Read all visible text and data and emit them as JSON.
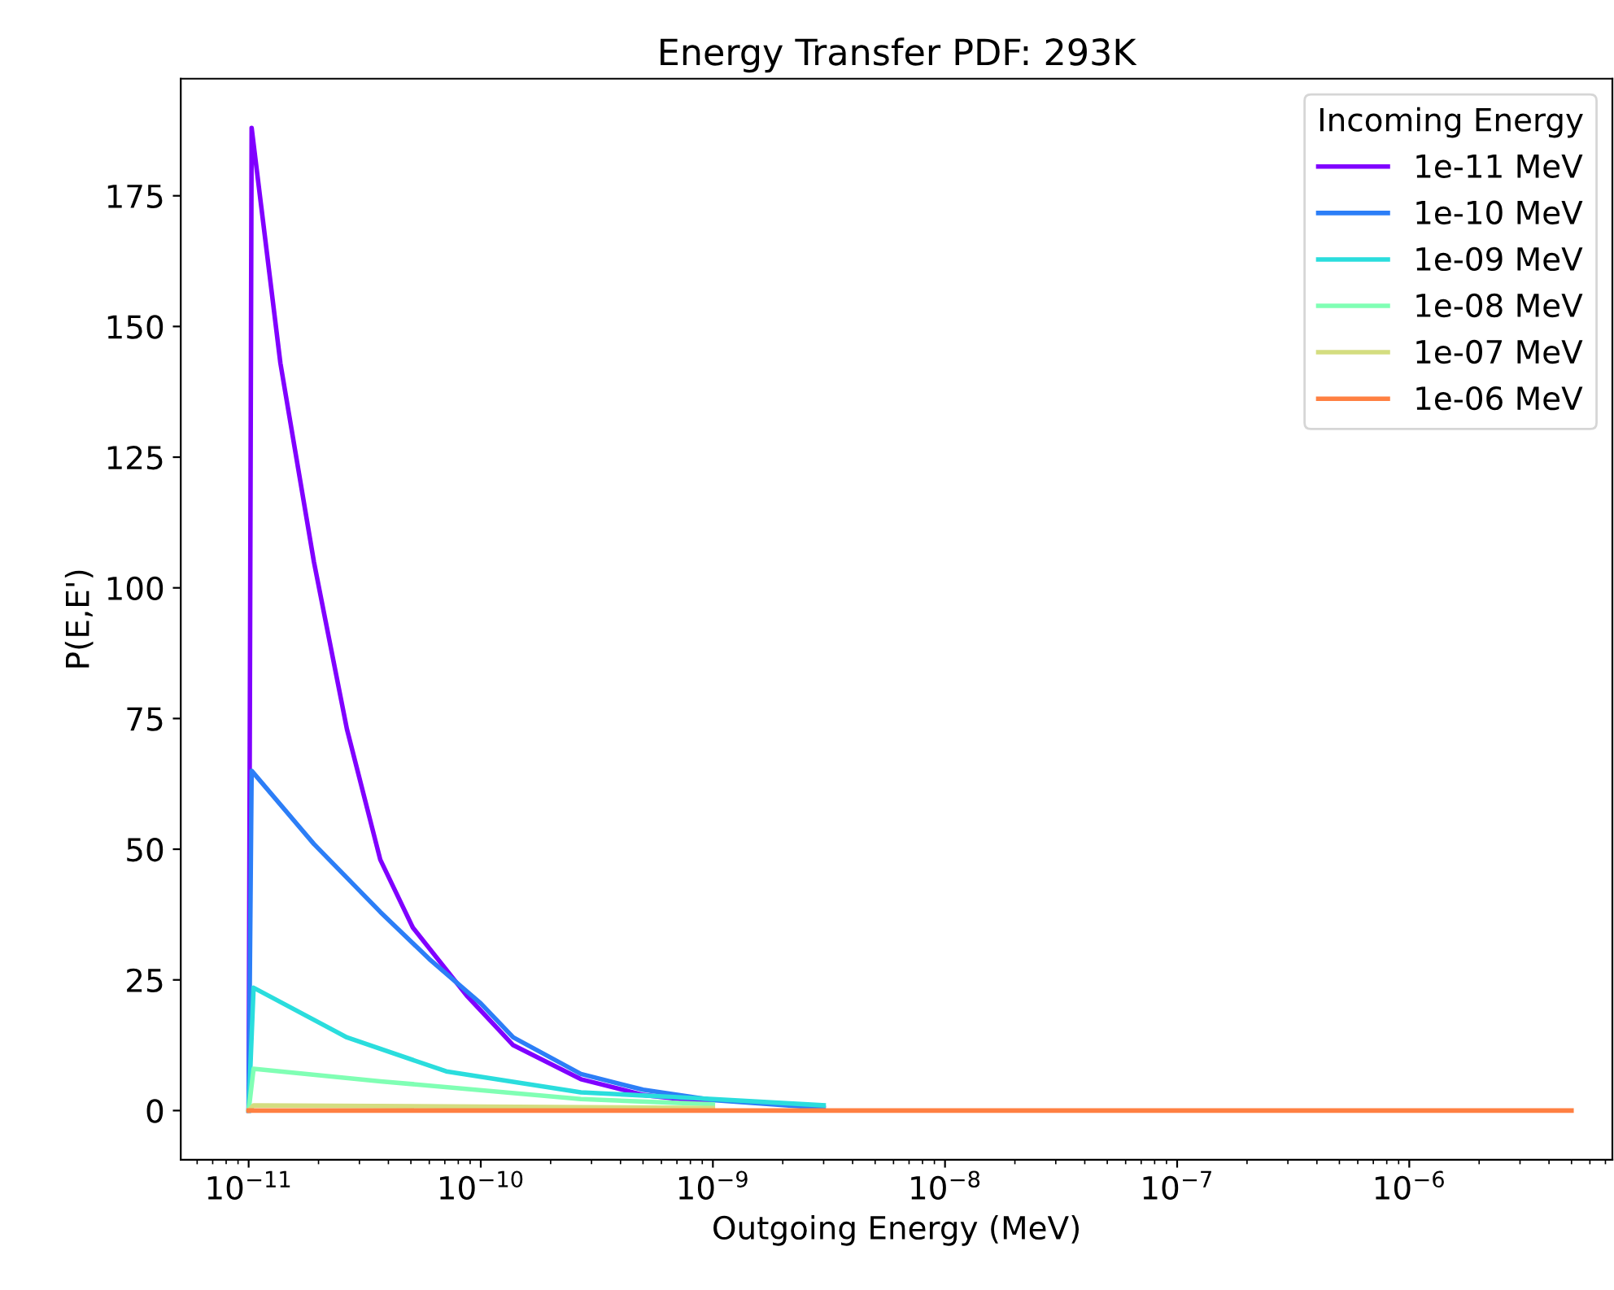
{
  "chart_data": {
    "type": "line",
    "title": "Energy Transfer PDF: 293K",
    "xlabel": "Outgoing Energy (MeV)",
    "ylabel": "P(E,E')",
    "legend_title": "Incoming Energy",
    "legend": "top right",
    "log": "x",
    "grid": false,
    "xlim": [
      5.1e-12,
      7.5e-06
    ],
    "ylim": [
      -9.4,
      197.4
    ],
    "xticks": [
      {
        "value": 1e-11,
        "label": "10$^{−11}$"
      },
      {
        "value": 1e-10,
        "label": "10$^{−10}$"
      },
      {
        "value": 1e-09,
        "label": "10$^{−9}$"
      },
      {
        "value": 1e-08,
        "label": "10$^{−8}$"
      },
      {
        "value": 1e-07,
        "label": "10$^{−7}$"
      },
      {
        "value": 1e-06,
        "label": "10$^{−6}$"
      }
    ],
    "yticks": [
      0,
      25,
      50,
      75,
      100,
      125,
      150,
      175
    ],
    "series": [
      {
        "name": "1e-11 MeV",
        "color": "#8000ff",
        "x": [
          1e-11,
          1.03e-11,
          1.37e-11,
          1.91e-11,
          2.65e-11,
          3.69e-11,
          5.1e-11,
          8.7e-11,
          1.38e-10,
          2.7e-10,
          5e-10,
          1e-09
        ],
        "values": [
          0,
          188,
          143,
          105,
          73,
          48,
          35,
          22,
          12.5,
          6,
          3,
          1.5
        ]
      },
      {
        "name": "1e-10 MeV",
        "color": "#2c7ef7",
        "x": [
          1e-11,
          1.03e-11,
          1.91e-11,
          3.69e-11,
          6e-11,
          1e-10,
          1.38e-10,
          2.7e-10,
          5e-10,
          1e-09,
          3e-09
        ],
        "values": [
          0,
          65,
          51,
          38,
          29,
          20.5,
          14,
          7,
          4,
          2,
          0.5
        ]
      },
      {
        "name": "1e-09 MeV",
        "color": "#2adddd",
        "x": [
          1e-11,
          1.05e-11,
          2.65e-11,
          7.1e-11,
          2.7e-10,
          1e-09,
          3e-09
        ],
        "values": [
          0,
          23.5,
          14,
          7.5,
          3.5,
          2.2,
          1
        ]
      },
      {
        "name": "1e-08 MeV",
        "color": "#80ffb4",
        "x": [
          1e-11,
          1.05e-11,
          3.7e-11,
          2.7e-10,
          1e-09
        ],
        "values": [
          0,
          8,
          5.6,
          2.2,
          1.2
        ]
      },
      {
        "name": "1e-07 MeV",
        "color": "#d4dd80",
        "x": [
          1e-11,
          1.05e-11,
          1e-09
        ],
        "values": [
          0,
          1,
          0.5
        ]
      },
      {
        "name": "1e-06 MeV",
        "color": "#ff8042",
        "x": [
          1e-11,
          5e-06
        ],
        "values": [
          0,
          0
        ]
      }
    ]
  }
}
